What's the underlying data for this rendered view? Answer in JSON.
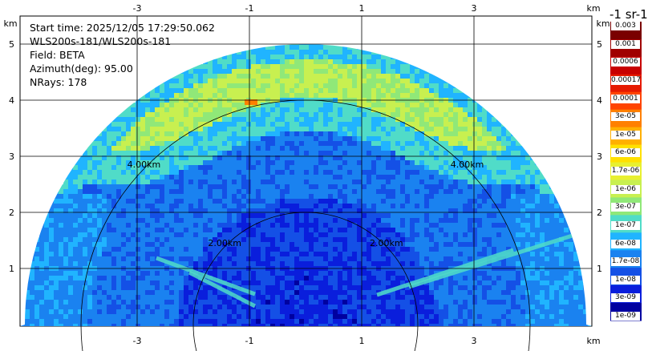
{
  "info": {
    "start_time": "Start time: 2025/12/05 17:29:50.062",
    "instrument": "WLS200s-181/WLS200s-181",
    "field": "Field: BETA",
    "azimuth": "Azimuth(deg): 95.00",
    "nrays": "NRays: 178"
  },
  "colorbar": {
    "title": "-1 sr-1",
    "labels": [
      "0.003",
      "0.001",
      "0.0006",
      "0.00017",
      "0.0001",
      "3e-05",
      "1e-05",
      "6e-06",
      "1.7e-06",
      "1e-06",
      "3e-07",
      "1e-07",
      "6e-08",
      "1.7e-08",
      "1e-08",
      "3e-09",
      "1e-09"
    ],
    "colors": [
      "#7a0000",
      "#a00000",
      "#c80000",
      "#e61a00",
      "#ff4400",
      "#ff8000",
      "#ffb000",
      "#ffe000",
      "#e8f030",
      "#c8f050",
      "#90e878",
      "#50dcc8",
      "#20b4ff",
      "#1a82f0",
      "#1450e6",
      "#0a1edc",
      "#0000a0"
    ]
  },
  "chart_data": {
    "type": "heatmap",
    "description_field": "BETA",
    "x_unit": "km",
    "y_unit": "km",
    "x_ticks": [
      -3,
      -1,
      1,
      3
    ],
    "y_ticks": [
      1,
      2,
      3,
      4,
      5
    ],
    "xlim": [
      -5.0,
      5.0
    ],
    "ylim": [
      0,
      5.5
    ],
    "range_rings_km": [
      2.0,
      4.0
    ],
    "range_ring_labels": [
      "2.00km",
      "4.00km"
    ],
    "max_range_km": 5.0,
    "azimuth_deg": 95.0,
    "nrays": 178
  }
}
